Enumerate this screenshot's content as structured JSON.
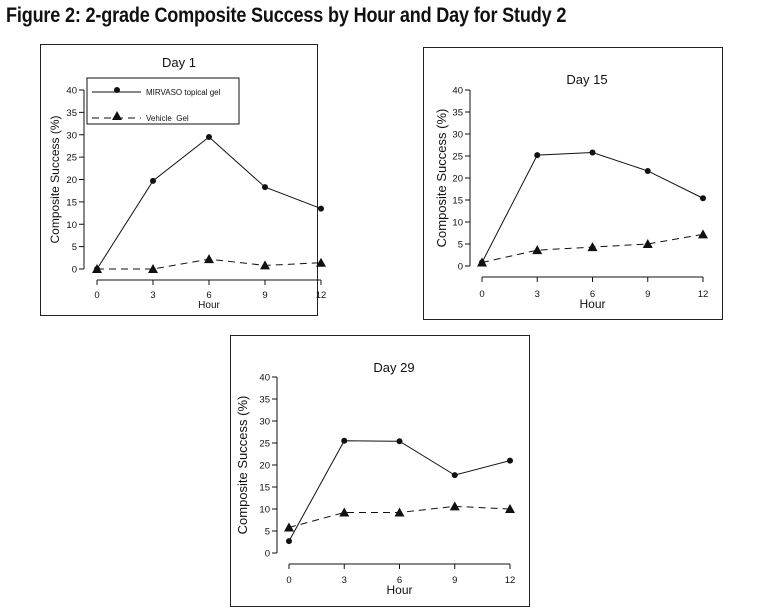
{
  "figure": {
    "title": "Figure 2: 2-grade Composite Success by Hour and Day for Study 2"
  },
  "legend": {
    "placement": "top-left",
    "entries": [
      "MIRVASO topical gel",
      "Vehicle  Gel"
    ]
  },
  "colors": {
    "line": "#111111",
    "frame": "#222222",
    "background": "#ffffff"
  },
  "chart_data": [
    {
      "type": "line",
      "title": "Day 1",
      "xlabel": "Hour",
      "ylabel": "Composite Success (%)",
      "x": [
        0,
        3,
        6,
        9,
        12
      ],
      "xticks": [
        "0",
        "3",
        "6",
        "9",
        "12"
      ],
      "yticks": [
        "0",
        "5",
        "10",
        "15",
        "20",
        "25",
        "30",
        "35",
        "40"
      ],
      "ylim": [
        0,
        40
      ],
      "legend": true,
      "series": [
        {
          "name": "MIRVASO topical gel",
          "marker": "circle",
          "style": "solid",
          "values": [
            0,
            19.7,
            29.5,
            18.3,
            13.5
          ]
        },
        {
          "name": "Vehicle  Gel",
          "marker": "triangle",
          "style": "dashed",
          "values": [
            0,
            0,
            2.2,
            0.8,
            1.4
          ]
        }
      ]
    },
    {
      "type": "line",
      "title": "Day 15",
      "xlabel": "Hour",
      "ylabel": "Composite Success (%)",
      "x": [
        0,
        3,
        6,
        9,
        12
      ],
      "xticks": [
        "0",
        "3",
        "6",
        "9",
        "12"
      ],
      "yticks": [
        "0",
        "5",
        "10",
        "15",
        "20",
        "25",
        "30",
        "35",
        "40"
      ],
      "ylim": [
        0,
        40
      ],
      "legend": false,
      "series": [
        {
          "name": "MIRVASO topical gel",
          "marker": "circle",
          "style": "solid",
          "values": [
            0.8,
            25.2,
            25.8,
            21.6,
            15.4
          ]
        },
        {
          "name": "Vehicle  Gel",
          "marker": "triangle",
          "style": "dashed",
          "values": [
            0.8,
            3.6,
            4.3,
            5.0,
            7.2
          ]
        }
      ]
    },
    {
      "type": "line",
      "title": "Day 29",
      "xlabel": "Hour",
      "ylabel": "Composite Success (%)",
      "x": [
        0,
        3,
        6,
        9,
        12
      ],
      "xticks": [
        "0",
        "3",
        "6",
        "9",
        "12"
      ],
      "yticks": [
        "0",
        "5",
        "10",
        "15",
        "20",
        "25",
        "30",
        "35",
        "40"
      ],
      "ylim": [
        0,
        40
      ],
      "legend": false,
      "series": [
        {
          "name": "MIRVASO topical gel",
          "marker": "circle",
          "style": "solid",
          "values": [
            2.7,
            25.5,
            25.4,
            17.7,
            21.0
          ]
        },
        {
          "name": "Vehicle  Gel",
          "marker": "triangle",
          "style": "dashed",
          "values": [
            5.8,
            9.2,
            9.2,
            10.6,
            10.0
          ]
        }
      ]
    }
  ]
}
